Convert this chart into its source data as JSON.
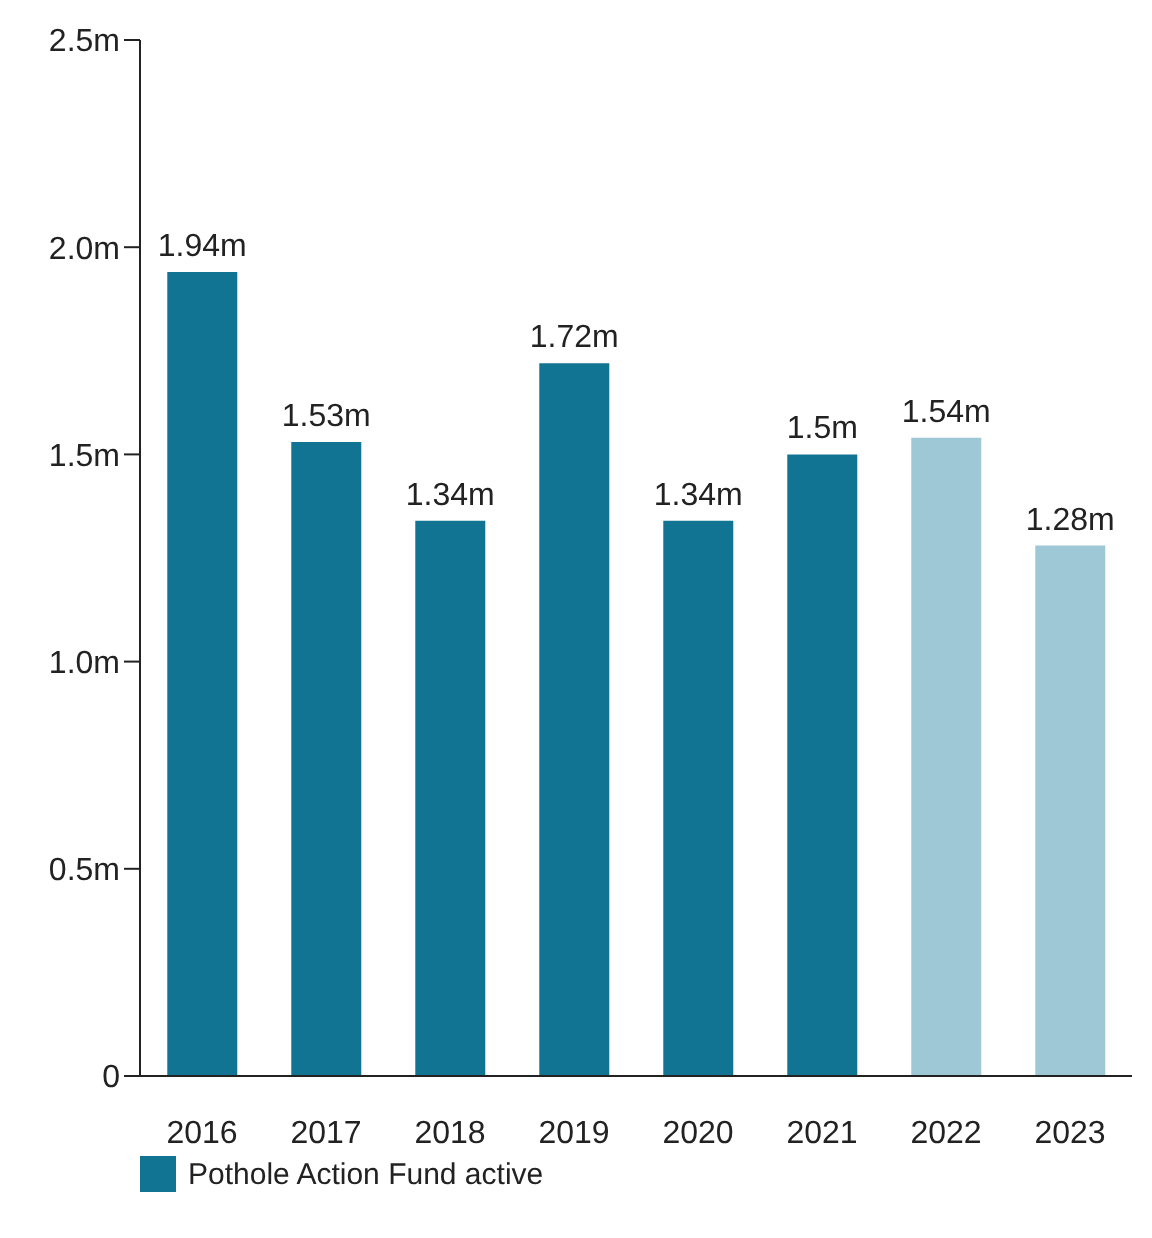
{
  "chart_data": {
    "type": "bar",
    "categories": [
      "2016",
      "2017",
      "2018",
      "2019",
      "2020",
      "2021",
      "2022",
      "2023"
    ],
    "series": [
      {
        "name": "Pothole Action Fund active",
        "color": "#127493",
        "values": [
          1.94,
          1.53,
          1.34,
          1.72,
          1.34,
          1.5,
          1.54,
          1.28
        ],
        "colors": [
          "#127493",
          "#127493",
          "#127493",
          "#127493",
          "#127493",
          "#127493",
          "#9ec8d6",
          "#9ec8d6"
        ],
        "value_labels": [
          "1.94m",
          "1.53m",
          "1.34m",
          "1.72m",
          "1.34m",
          "1.5m",
          "1.54m",
          "1.28m"
        ]
      }
    ],
    "ylim": [
      0,
      2.5
    ],
    "yticks": [
      0,
      {
        "value": 0.5,
        "label": "0.5m"
      },
      {
        "value": 1,
        "label": "1.0m"
      },
      {
        "value": 1.5,
        "label": "1.5m"
      },
      {
        "value": 2,
        "label": "2.0m"
      },
      {
        "value": 2.5,
        "label": "2.5m"
      }
    ],
    "grid": false,
    "legend": "bottom left"
  }
}
